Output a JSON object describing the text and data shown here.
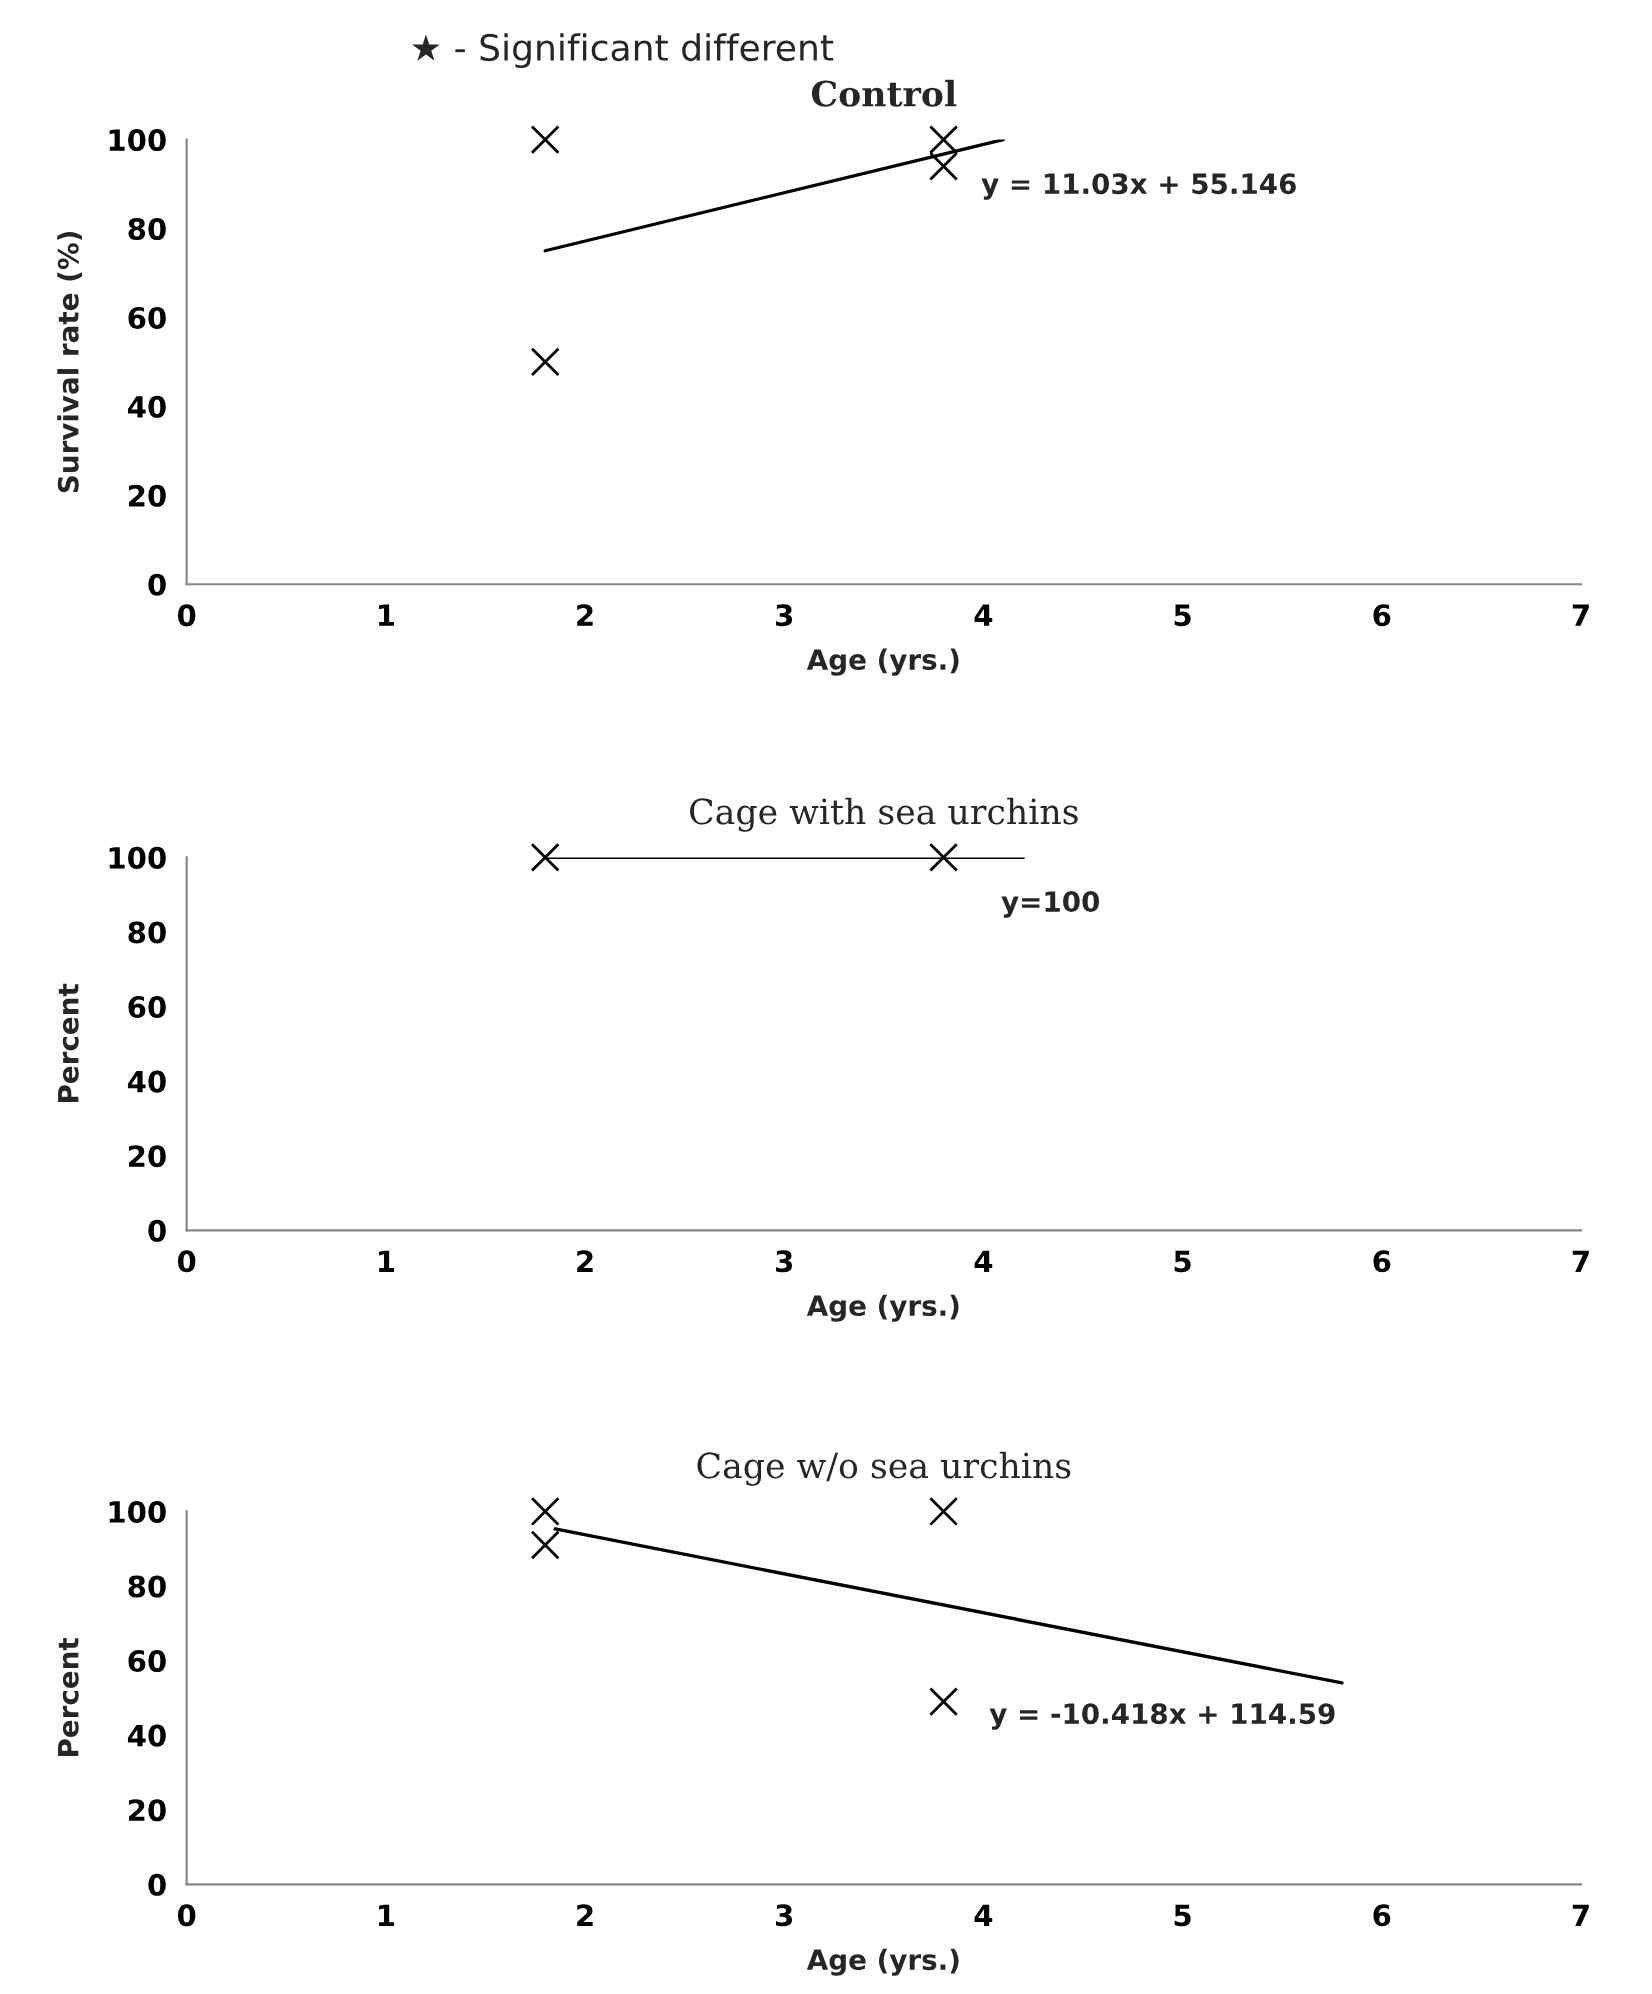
{
  "chart_data": [
    {
      "type": "scatter",
      "title": "Control",
      "xlabel": "Age (yrs.)",
      "ylabel": "Survival rate (%)",
      "xlim": [
        0,
        7
      ],
      "xticks": [
        0,
        1,
        2,
        3,
        4,
        5,
        6,
        7
      ],
      "ylim": [
        0,
        100
      ],
      "yticks": [
        0,
        20,
        40,
        60,
        80,
        100
      ],
      "grid": false,
      "legend": false,
      "marker": "cross",
      "series": [
        {
          "color": "#000000",
          "x": [
            1.8,
            1.8,
            3.8,
            3.8
          ],
          "values": [
            100,
            50,
            100,
            94
          ]
        },
        {
          "type": "line",
          "color": "#000000",
          "marker": "none",
          "x": [
            1.8,
            4.1
          ],
          "values": [
            75,
            100
          ]
        }
      ],
      "annotations": [
        "★ - Significant different",
        "y = 11.03x + 55.146"
      ]
    },
    {
      "type": "scatter",
      "title": "Cage with sea urchins",
      "xlabel": "Age (yrs.)",
      "ylabel": "Percent",
      "xlim": [
        0,
        7
      ],
      "xticks": [
        0,
        1,
        2,
        3,
        4,
        5,
        6,
        7
      ],
      "ylim": [
        0,
        100
      ],
      "yticks": [
        0,
        20,
        40,
        60,
        80,
        100
      ],
      "grid": false,
      "legend": false,
      "marker": "cross",
      "series": [
        {
          "color": "#000000",
          "x": [
            1.8,
            3.8
          ],
          "values": [
            100,
            100
          ]
        },
        {
          "type": "line",
          "color": "#000000",
          "marker": "none",
          "x": [
            1.8,
            4.2
          ],
          "values": [
            100,
            100
          ]
        }
      ],
      "annotations": [
        "y=100"
      ]
    },
    {
      "type": "scatter",
      "title": "Cage w/o sea urchins",
      "xlabel": "Age (yrs.)",
      "ylabel": "Percent",
      "xlim": [
        0,
        7
      ],
      "xticks": [
        0,
        1,
        2,
        3,
        4,
        5,
        6,
        7
      ],
      "ylim": [
        0,
        100
      ],
      "yticks": [
        0,
        20,
        40,
        60,
        80,
        100
      ],
      "grid": false,
      "legend": false,
      "marker": "cross",
      "series": [
        {
          "color": "#000000",
          "x": [
            1.8,
            1.8,
            3.8,
            3.8
          ],
          "values": [
            100,
            91,
            100,
            49
          ]
        },
        {
          "type": "line",
          "color": "#000000",
          "marker": "none",
          "x": [
            1.85,
            5.8
          ],
          "values": [
            95.3,
            54
          ]
        }
      ],
      "annotations": [
        "y = -10.418x + 114.59"
      ]
    }
  ]
}
